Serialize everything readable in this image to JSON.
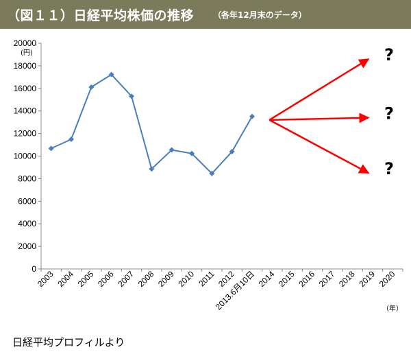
{
  "header": {
    "title": "（図１１）日経平均株価の推移",
    "subtitle": "（各年12月末のデータ）"
  },
  "source": "日経平均プロフィルより",
  "colors": {
    "header_bg": "#7b7a5a",
    "line": "#4a7ebb",
    "arrow": "#ff0000"
  },
  "chart_data": {
    "type": "line",
    "y_unit": "(円)",
    "x_unit": "（年）",
    "ylim": [
      0,
      20000
    ],
    "yticks": [
      0,
      2000,
      4000,
      6000,
      8000,
      10000,
      12000,
      14000,
      16000,
      18000,
      20000
    ],
    "categories": [
      "2003",
      "2004",
      "2005",
      "2006",
      "2007",
      "2008",
      "2009",
      "2010",
      "2011",
      "2012",
      "2013.6月10日",
      "2014",
      "2015",
      "2016",
      "2017",
      "2018",
      "2019",
      "2020"
    ],
    "series": [
      {
        "values": [
          10676,
          11488,
          16111,
          17225,
          15307,
          8859,
          10546,
          10228,
          8455,
          10395,
          13514,
          null,
          null,
          null,
          null,
          null,
          null,
          null
        ]
      }
    ],
    "grid": false,
    "annotations": [
      {
        "type": "arrow",
        "from": "2014",
        "to_category": "2019",
        "to_value": 18600,
        "label": "?"
      },
      {
        "type": "arrow",
        "from": "2014",
        "to_category": "2019",
        "to_value": 13400,
        "label": "?"
      },
      {
        "type": "arrow",
        "from": "2014",
        "to_category": "2019",
        "to_value": 8500,
        "label": "?"
      }
    ]
  }
}
